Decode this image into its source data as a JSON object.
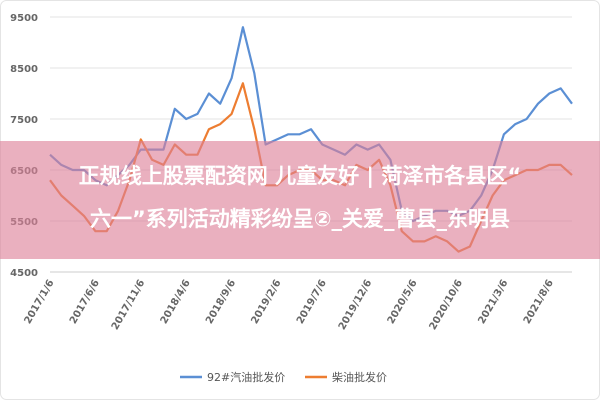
{
  "chart_data": {
    "type": "line",
    "categories": [
      "2017/1/6",
      null,
      null,
      null,
      "2017/6/6",
      null,
      null,
      null,
      "2017/11/6",
      null,
      null,
      null,
      "2018/4/6",
      null,
      null,
      null,
      "2018/9/6",
      null,
      null,
      null,
      "2019/2/6",
      null,
      null,
      null,
      "2019/7/6",
      null,
      null,
      null,
      "2019/12/6",
      null,
      null,
      null,
      "2020/5/6",
      null,
      null,
      null,
      "2020/10/6",
      null,
      null,
      null,
      "2021/3/6",
      null,
      null,
      null,
      "2021/8/6",
      null,
      null
    ],
    "series": [
      {
        "name": "92#汽油批发价",
        "color": "#5b8fd4",
        "values": [
          6800,
          6600,
          6500,
          6500,
          6300,
          6200,
          6400,
          6600,
          6900,
          6900,
          6900,
          7700,
          7500,
          7600,
          8000,
          7800,
          8300,
          9300,
          8400,
          7000,
          7100,
          7200,
          7200,
          7300,
          7000,
          6900,
          6800,
          7000,
          6900,
          7000,
          6700,
          5700,
          5500,
          5600,
          5700,
          5700,
          5600,
          5700,
          6000,
          6500,
          7200,
          7400,
          7500,
          7800,
          8000,
          8100,
          7800
        ]
      },
      {
        "name": "柴油批发价",
        "color": "#ed7d31",
        "values": [
          6300,
          6000,
          5800,
          5600,
          5300,
          5300,
          5700,
          6300,
          7100,
          6700,
          6600,
          7000,
          6800,
          6800,
          7300,
          7400,
          7600,
          8200,
          7300,
          6200,
          6200,
          6400,
          6500,
          6500,
          6300,
          6300,
          6200,
          6600,
          6500,
          6700,
          6200,
          5300,
          5100,
          5100,
          5200,
          5100,
          4900,
          5000,
          5500,
          6000,
          6300,
          6400,
          6500,
          6500,
          6600,
          6600,
          6400
        ]
      }
    ],
    "ylim": [
      4500,
      9500
    ],
    "yticks": [
      4500,
      5500,
      6500,
      7500,
      8500,
      9500
    ],
    "grid": true,
    "legend": "bottom"
  },
  "banner": {
    "lines": [
      "正规线上股票配资网 儿童友好 | 菏泽市各县区“",
      "六一”系列活动精彩纷呈②_关爱_曹县_东明县"
    ]
  }
}
